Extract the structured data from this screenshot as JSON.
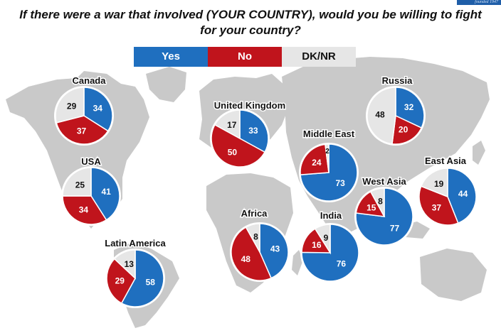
{
  "header": {
    "title_line1": "If there were a war that involved (YOUR COUNTRY), would you be willing to fight",
    "title_line2": "for your country?",
    "brand": "founded 1947"
  },
  "legend": [
    {
      "label": "Yes",
      "color": "#1f6fbf",
      "text_color": "#ffffff"
    },
    {
      "label": "No",
      "color": "#c0141c",
      "text_color": "#ffffff"
    },
    {
      "label": "DK/NR",
      "color": "#e6e6e6",
      "text_color": "#111111"
    }
  ],
  "colors": {
    "yes": "#1f6fbf",
    "no": "#c0141c",
    "dknr": "#e6e6e6",
    "map": "#c9c9c9"
  },
  "chart_data": {
    "type": "pie",
    "title": "If there were a war that involved (YOUR COUNTRY), would you be willing to fight for your country?",
    "categories": [
      "Yes",
      "No",
      "DK/NR"
    ],
    "series": [
      {
        "name": "Canada",
        "values": [
          34,
          37,
          29
        ]
      },
      {
        "name": "USA",
        "values": [
          41,
          34,
          25
        ]
      },
      {
        "name": "Latin America",
        "values": [
          58,
          29,
          13
        ]
      },
      {
        "name": "United Kingdom",
        "values": [
          33,
          50,
          17
        ]
      },
      {
        "name": "Africa",
        "values": [
          43,
          48,
          8
        ]
      },
      {
        "name": "Middle East",
        "values": [
          73,
          24,
          2
        ]
      },
      {
        "name": "India",
        "values": [
          76,
          16,
          9
        ]
      },
      {
        "name": "Russia",
        "values": [
          32,
          20,
          48
        ]
      },
      {
        "name": "West Asia",
        "values": [
          77,
          15,
          8
        ]
      },
      {
        "name": "East Asia",
        "values": [
          44,
          37,
          19
        ]
      }
    ]
  }
}
